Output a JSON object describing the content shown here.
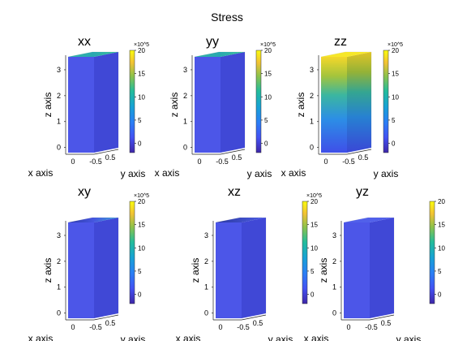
{
  "figure_title": "Stress",
  "chart_data": [
    {
      "type": "heatmap",
      "title": "xx",
      "xlabel": "x axis",
      "ylabel": "y axis",
      "zlabel": "z axis",
      "x_ticks": [
        "0"
      ],
      "y_ticks": [
        "-0.5",
        "0.5"
      ],
      "z_ticks": [
        "0",
        "1",
        "2",
        "3"
      ],
      "zlim": [
        -0.2,
        3.5
      ],
      "colorbar": {
        "ticks": [
          "0",
          "5",
          "10",
          "15",
          "20"
        ],
        "exponent": "×10^5",
        "range": [
          -2,
          20
        ]
      },
      "field": "top face high (~8), rest low"
    },
    {
      "type": "heatmap",
      "title": "yy",
      "xlabel": "x axis",
      "ylabel": "y axis",
      "zlabel": "z axis",
      "x_ticks": [
        "0"
      ],
      "y_ticks": [
        "-0.5",
        "0.5"
      ],
      "z_ticks": [
        "0",
        "1",
        "2",
        "3"
      ],
      "zlim": [
        -0.2,
        3.5
      ],
      "colorbar": {
        "ticks": [
          "0",
          "5",
          "10",
          "15",
          "20"
        ],
        "exponent": "×10^5",
        "range": [
          -2,
          20
        ]
      },
      "field": "top face high (~8), rest low"
    },
    {
      "type": "heatmap",
      "title": "zz",
      "xlabel": "x axis",
      "ylabel": "y axis",
      "zlabel": "z axis",
      "x_ticks": [
        "0"
      ],
      "y_ticks": [
        "-0.5",
        "0.5"
      ],
      "z_ticks": [
        "0",
        "1",
        "2",
        "3"
      ],
      "zlim": [
        -0.2,
        3.5
      ],
      "colorbar": {
        "ticks": [
          "0",
          "5",
          "10",
          "15",
          "20"
        ],
        "exponent": "×10^5",
        "range": [
          -2,
          20
        ]
      },
      "field": "linear gradient from ~0 at bottom to ~20 at top"
    },
    {
      "type": "heatmap",
      "title": "xy",
      "xlabel": "x axis",
      "ylabel": "y axis",
      "zlabel": "z axis",
      "x_ticks": [
        "0"
      ],
      "y_ticks": [
        "-0.5",
        "0.5"
      ],
      "z_ticks": [
        "0",
        "1",
        "2",
        "3"
      ],
      "zlim": [
        -0.2,
        3.5
      ],
      "colorbar": {
        "ticks": [
          "0",
          "5",
          "10",
          "15",
          "20"
        ],
        "exponent": "×10^5",
        "range": [
          -2,
          20
        ]
      },
      "field": "mostly low, slight variation at top edge"
    },
    {
      "type": "heatmap",
      "title": "xz",
      "xlabel": "x axis",
      "ylabel": "y axis",
      "zlabel": "z axis",
      "x_ticks": [
        "0"
      ],
      "y_ticks": [
        "-0.5",
        "0.5"
      ],
      "z_ticks": [
        "0",
        "1",
        "2",
        "3"
      ],
      "zlim": [
        -0.2,
        3.5
      ],
      "colorbar": {
        "ticks": [
          "0",
          "5",
          "10",
          "15",
          "20"
        ],
        "exponent": "×10^5",
        "range": [
          -2,
          20
        ]
      },
      "field": "mostly low, slight variation at top edge"
    },
    {
      "type": "heatmap",
      "title": "yz",
      "xlabel": "x axis",
      "ylabel": "y axis",
      "zlabel": "z axis",
      "x_ticks": [
        "0"
      ],
      "y_ticks": [
        "-0.5",
        "0.5"
      ],
      "z_ticks": [
        "0",
        "1",
        "2",
        "3"
      ],
      "zlim": [
        -0.2,
        3.5
      ],
      "colorbar": {
        "ticks": [
          "0",
          "5",
          "10",
          "15",
          "20"
        ],
        "exponent": "",
        "range": [
          -2,
          20
        ]
      },
      "field": "uniformly low"
    }
  ],
  "colors": {
    "low": "#4a50e6",
    "mid": "#21a0a0",
    "high": "#f9e02a",
    "colormap": "parula"
  }
}
